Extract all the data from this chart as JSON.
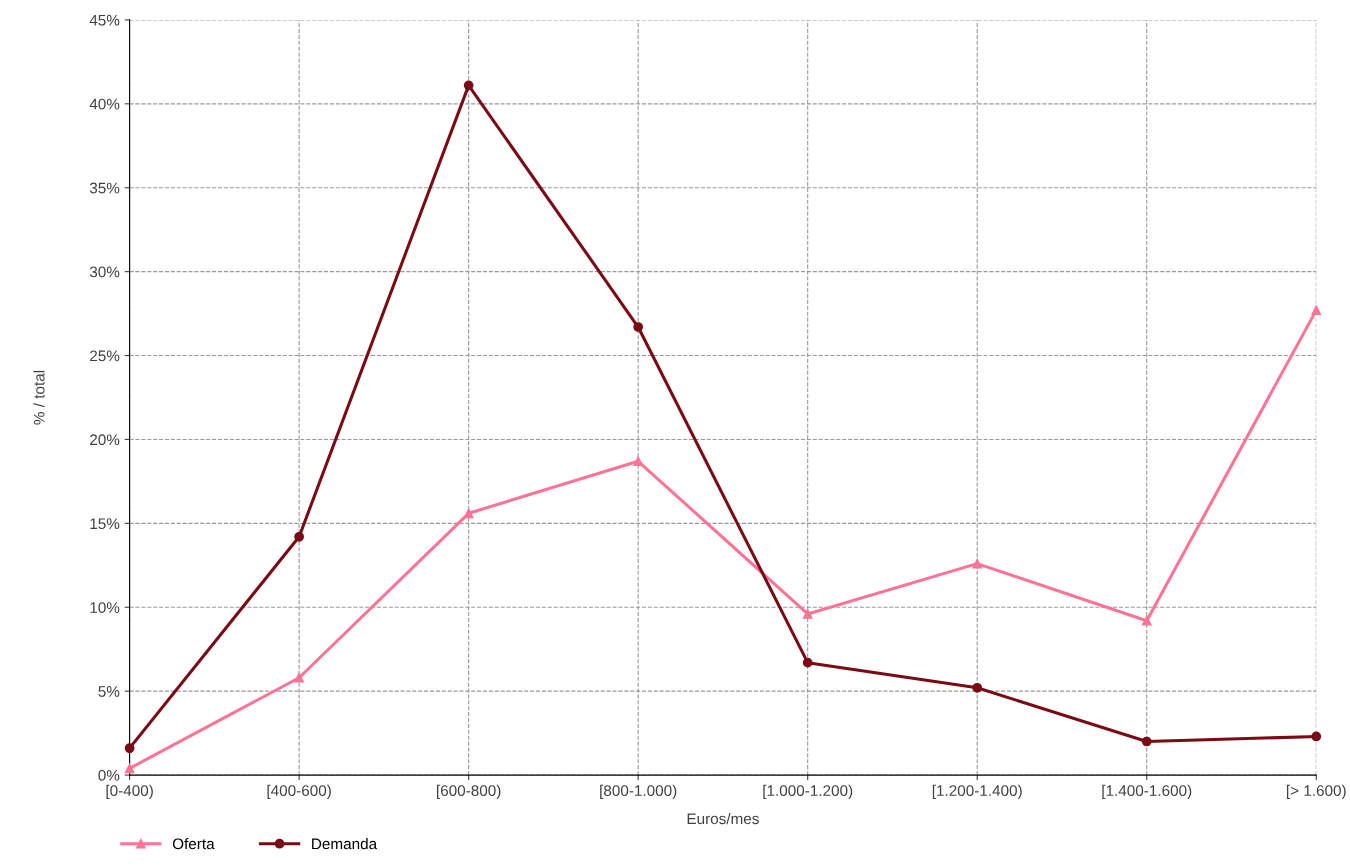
{
  "chart_data": {
    "type": "line",
    "xlabel": "Euros/mes",
    "ylabel": "% / total",
    "categories": [
      "[0-400)",
      "[400-600)",
      "[600-800)",
      "[800-1.000)",
      "[1.000-1.200)",
      "[1.200-1.400)",
      "[1.400-1.600)",
      "[> 1.600)"
    ],
    "series": [
      {
        "name": "Oferta",
        "color": "#ff7396",
        "marker": "triangle",
        "values": [
          0.4,
          5.8,
          15.6,
          18.7,
          9.6,
          12.6,
          9.2,
          27.7
        ]
      },
      {
        "name": "Demanda",
        "color": "#7b0a14",
        "marker": "circle",
        "values": [
          1.6,
          14.2,
          41.1,
          26.7,
          6.7,
          5.2,
          2.0,
          2.3
        ]
      }
    ],
    "ylim": [
      0,
      45
    ],
    "yticks": [
      {
        "value": 0,
        "label": "0%"
      },
      {
        "value": 5,
        "label": "5%"
      },
      {
        "value": 10,
        "label": "10%"
      },
      {
        "value": 15,
        "label": "15%"
      },
      {
        "value": 20,
        "label": "20%"
      },
      {
        "value": 25,
        "label": "25%"
      },
      {
        "value": 30,
        "label": "30%"
      },
      {
        "value": 35,
        "label": "35%"
      },
      {
        "value": 40,
        "label": "40%"
      },
      {
        "value": 45,
        "label": "45%"
      }
    ],
    "grid": true,
    "legend": "bottom left",
    "line_style": "solid"
  }
}
